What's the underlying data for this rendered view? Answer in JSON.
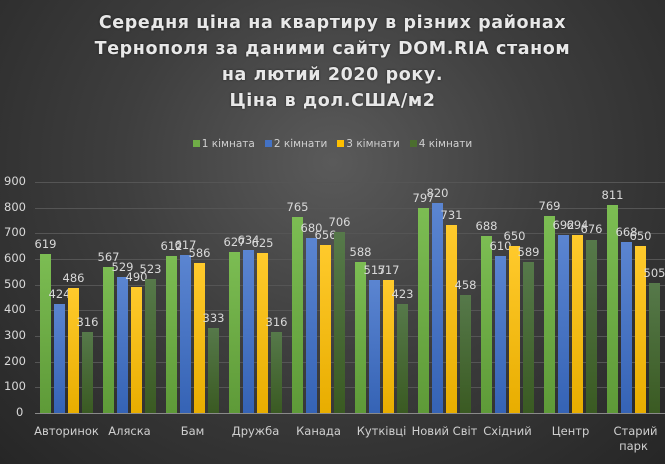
{
  "title": {
    "lines": [
      "Середня  ціна  на  квартиру  в різних  районах",
      "Тернополя  за даними  сайту DOM.RIA  станом",
      "на  лютий  2020  року.",
      "Ціна  в  дол.США/м2"
    ]
  },
  "legend": [
    {
      "label": "1 кімната",
      "color": "#70ad47"
    },
    {
      "label": "2 кімнати",
      "color": "#4472c4"
    },
    {
      "label": "3 кімнати",
      "color": "#ffc000"
    },
    {
      "label": "4 кімнати",
      "color": "#4b6e2f"
    }
  ],
  "chart_data": {
    "type": "bar",
    "title": "Середня ціна на квартиру в різних районах Тернополя за даними сайту DOM.RIA станом на лютий 2020 року. Ціна в дол.США/м2",
    "xlabel": "",
    "ylabel": "",
    "ylim": [
      0,
      900
    ],
    "yticks": [
      0,
      100,
      200,
      300,
      400,
      500,
      600,
      700,
      800,
      900
    ],
    "grid": true,
    "legend_position": "top",
    "categories": [
      "Авторинок",
      "Аляска",
      "Бам",
      "Дружба",
      "Канада",
      "Кутківці",
      "Новий Світ",
      "Східний",
      "Центр",
      "Старий парк"
    ],
    "series": [
      {
        "name": "1 кімната",
        "color": "#70ad47",
        "values": [
          619,
          567,
          612,
          627,
          765,
          588,
          797,
          688,
          769,
          811
        ]
      },
      {
        "name": "2 кімнати",
        "color": "#4472c4",
        "values": [
          424,
          529,
          617,
          634,
          680,
          517,
          820,
          610,
          692,
          668
        ]
      },
      {
        "name": "3 кімнати",
        "color": "#ffc000",
        "values": [
          486,
          490,
          586,
          625,
          656,
          517,
          731,
          650,
          694,
          650
        ]
      },
      {
        "name": "4 кімнати",
        "color": "#4b6e2f",
        "values": [
          316,
          523,
          333,
          316,
          706,
          423,
          458,
          589,
          676,
          505
        ]
      }
    ]
  }
}
